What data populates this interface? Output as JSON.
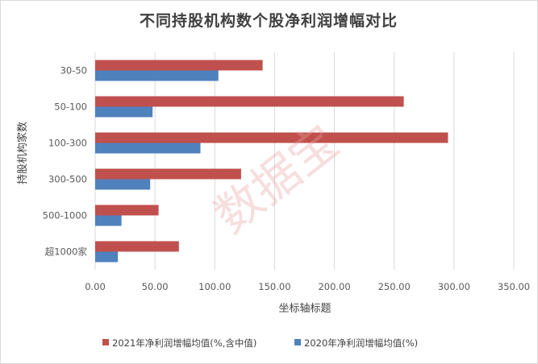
{
  "chart_data": {
    "type": "bar",
    "orientation": "horizontal",
    "title": "不同持股机构数个股净利润增幅对比",
    "xlabel": "坐标轴标题",
    "ylabel": "持股机构家数",
    "categories": [
      "30-50",
      "50-100",
      "100-300",
      "300-500",
      "500-1000",
      "超1000家"
    ],
    "series": [
      {
        "name": "2021年净利润增幅均值(%,含中值)",
        "color": "#c0504d",
        "values": [
          140,
          258,
          295,
          122,
          53,
          70
        ]
      },
      {
        "name": "2020年净利润增幅均值(%)",
        "color": "#4f81bd",
        "values": [
          103,
          48,
          88,
          46,
          22,
          19
        ]
      }
    ],
    "xlim": [
      0,
      350
    ],
    "xticks": [
      "0.00",
      "50.00",
      "100.00",
      "150.00",
      "200.00",
      "250.00",
      "300.00",
      "350.00"
    ],
    "grid": true,
    "legend_position": "bottom"
  },
  "watermark": "数据宝"
}
